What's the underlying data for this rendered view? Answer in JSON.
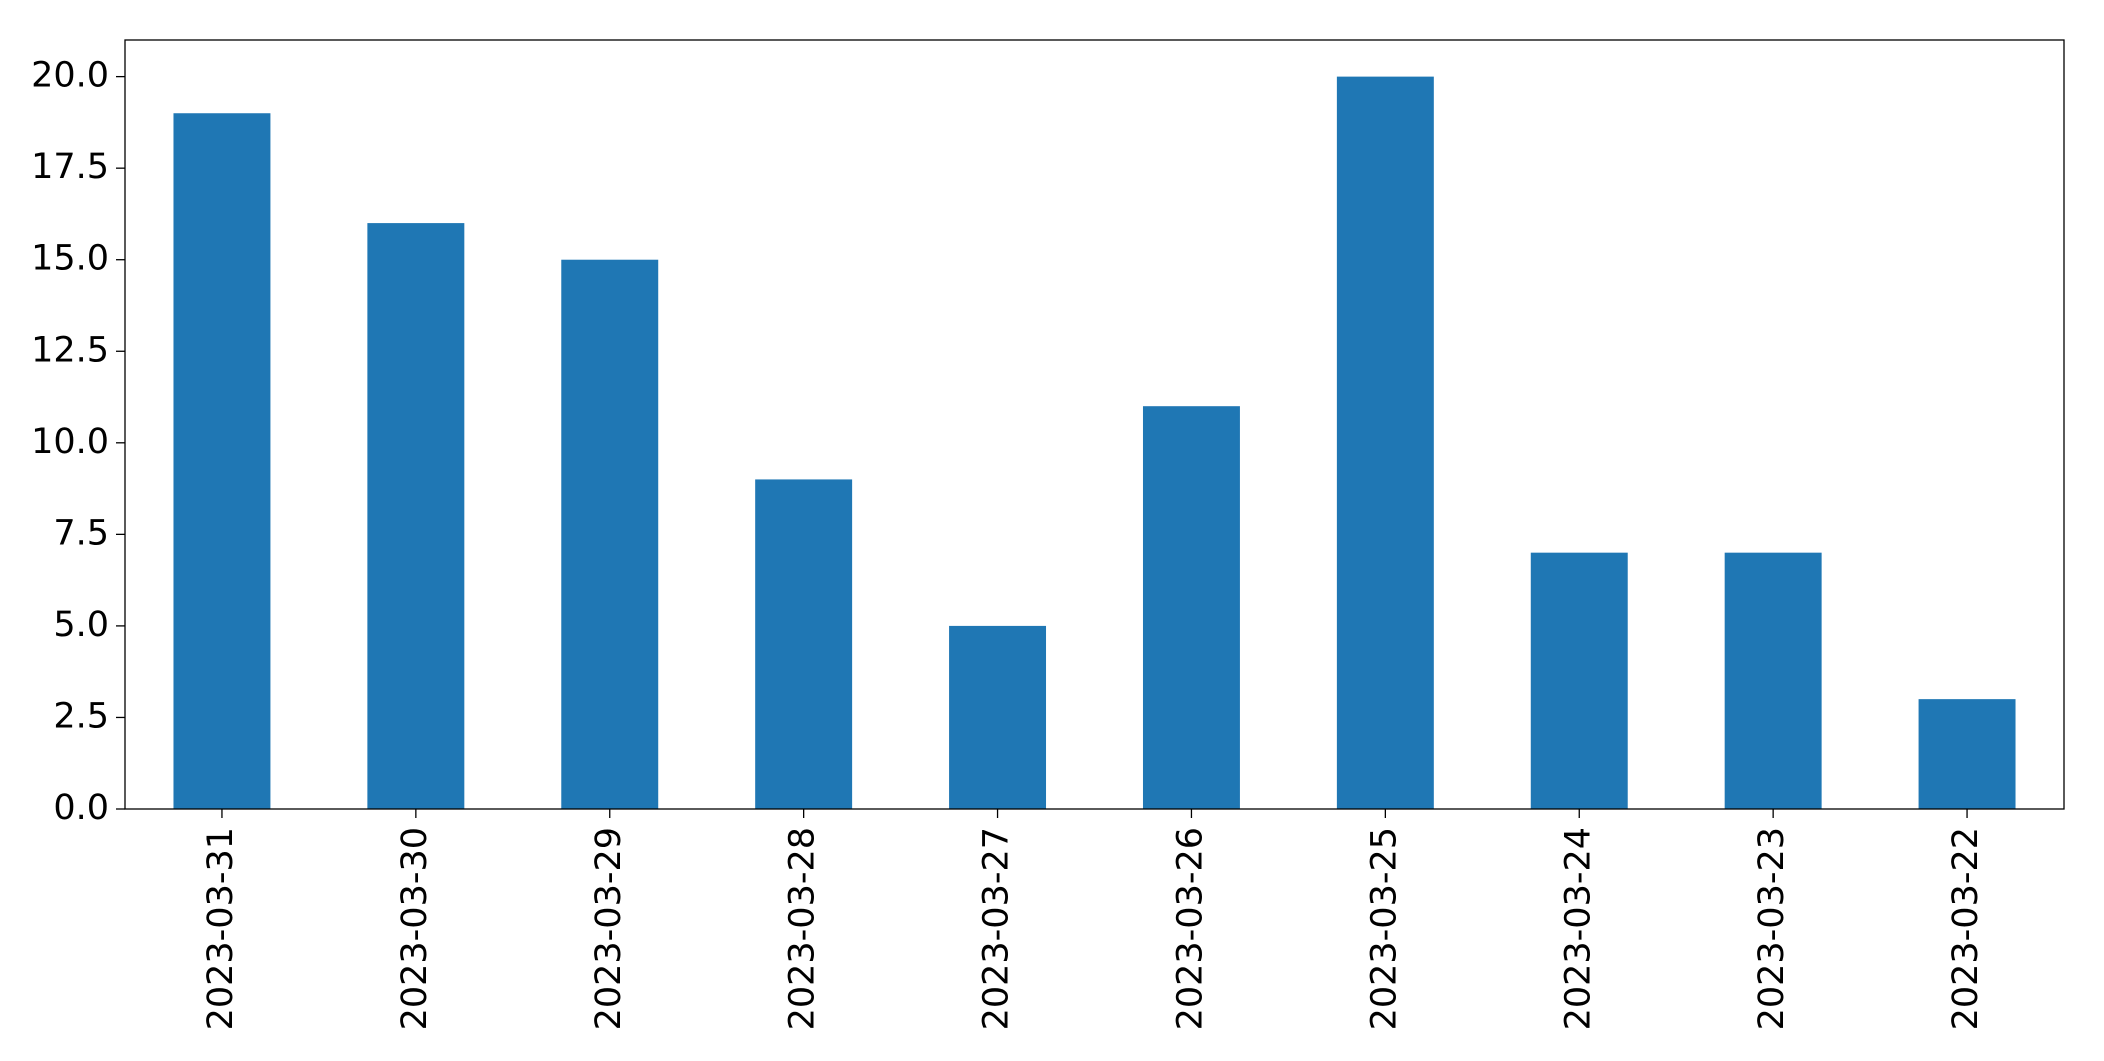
{
  "chart_data": {
    "type": "bar",
    "categories": [
      "2023-03-31",
      "2023-03-30",
      "2023-03-29",
      "2023-03-28",
      "2023-03-27",
      "2023-03-26",
      "2023-03-25",
      "2023-03-24",
      "2023-03-23",
      "2023-03-22"
    ],
    "values": [
      19,
      16,
      15,
      9,
      5,
      11,
      20,
      7,
      7,
      3
    ],
    "color": "#1f77b4",
    "ylim": [
      0,
      21
    ],
    "yticks": [
      {
        "value": 0,
        "label": "0.0"
      },
      2.5,
      {
        "value": 5,
        "label": "5.0"
      },
      7.5,
      {
        "value": 10,
        "label": "10.0"
      },
      12.5,
      {
        "value": 15,
        "label": "15.0"
      },
      17.5,
      {
        "value": 20,
        "label": "20.0"
      }
    ],
    "grid": false
  }
}
